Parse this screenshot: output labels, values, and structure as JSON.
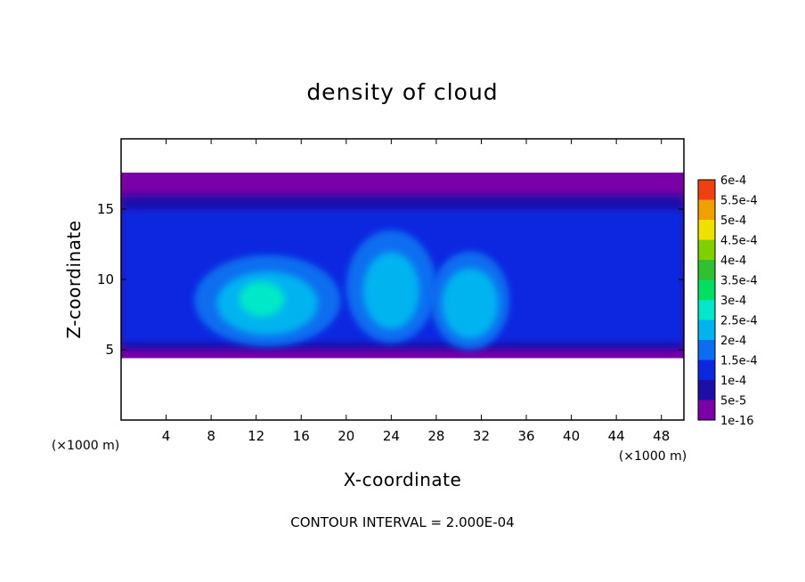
{
  "chart_data": {
    "type": "heatmap",
    "title": "density of cloud",
    "xlabel": "X-coordinate",
    "ylabel": "Z-coordinate",
    "x_unit": "(×1000 m)",
    "y_unit": "(×1000 m)",
    "xlim": [
      0,
      50
    ],
    "ylim": [
      0,
      20
    ],
    "x_ticks": [
      4,
      8,
      12,
      16,
      20,
      24,
      28,
      32,
      36,
      40,
      44,
      48
    ],
    "x_tick_labels": [
      "4",
      "8",
      "12",
      "16",
      "20",
      "24",
      "28",
      "32",
      "36",
      "40",
      "44",
      "48"
    ],
    "y_ticks": [
      5,
      10,
      15
    ],
    "y_tick_labels": [
      "5",
      "10",
      "15"
    ],
    "colorbar": {
      "labels": [
        "1e-16",
        "5e-5",
        "1e-4",
        "1.5e-4",
        "2e-4",
        "2.5e-4",
        "3e-4",
        "3.5e-4",
        "4e-4",
        "4.5e-4",
        "5e-4",
        "5.5e-4",
        "6e-4"
      ],
      "colors": [
        "#7a00a8",
        "#1c0fa8",
        "#0b28e0",
        "#0b6ef0",
        "#00b4f0",
        "#00e8c8",
        "#00e060",
        "#30c030",
        "#80d000",
        "#f0e000",
        "#f0a000",
        "#f04010",
        "#f08080"
      ]
    },
    "regions": [
      {
        "level": 0,
        "x_range": [
          0,
          50
        ],
        "z_range": [
          4.4,
          17.6
        ]
      },
      {
        "level": 1,
        "x_range": [
          0,
          50
        ],
        "z_range": [
          5.0,
          16.0
        ]
      },
      {
        "level": 2,
        "x_range": [
          0,
          50
        ],
        "z_range": [
          5.5,
          15.0
        ]
      },
      {
        "level": 3,
        "center": [
          13,
          8.5
        ],
        "size": [
          13,
          6.5
        ]
      },
      {
        "level": 3,
        "center": [
          24,
          9.5
        ],
        "size": [
          8,
          8
        ]
      },
      {
        "level": 3,
        "center": [
          31,
          8.5
        ],
        "size": [
          7,
          7
        ]
      },
      {
        "level": 4,
        "center": [
          13,
          8.3
        ],
        "size": [
          9,
          4.5
        ]
      },
      {
        "level": 4,
        "center": [
          24,
          9.2
        ],
        "size": [
          5,
          5.5
        ]
      },
      {
        "level": 4,
        "center": [
          31,
          8.3
        ],
        "size": [
          5,
          5
        ]
      },
      {
        "level": 5,
        "center": [
          12.5,
          8.6
        ],
        "size": [
          4,
          2.5
        ]
      }
    ],
    "contour_interval": "2.000E-04",
    "grid": false,
    "legend": "colorbar-right"
  },
  "footer": {
    "text": "CONTOUR INTERVAL = 2.000E-04"
  }
}
